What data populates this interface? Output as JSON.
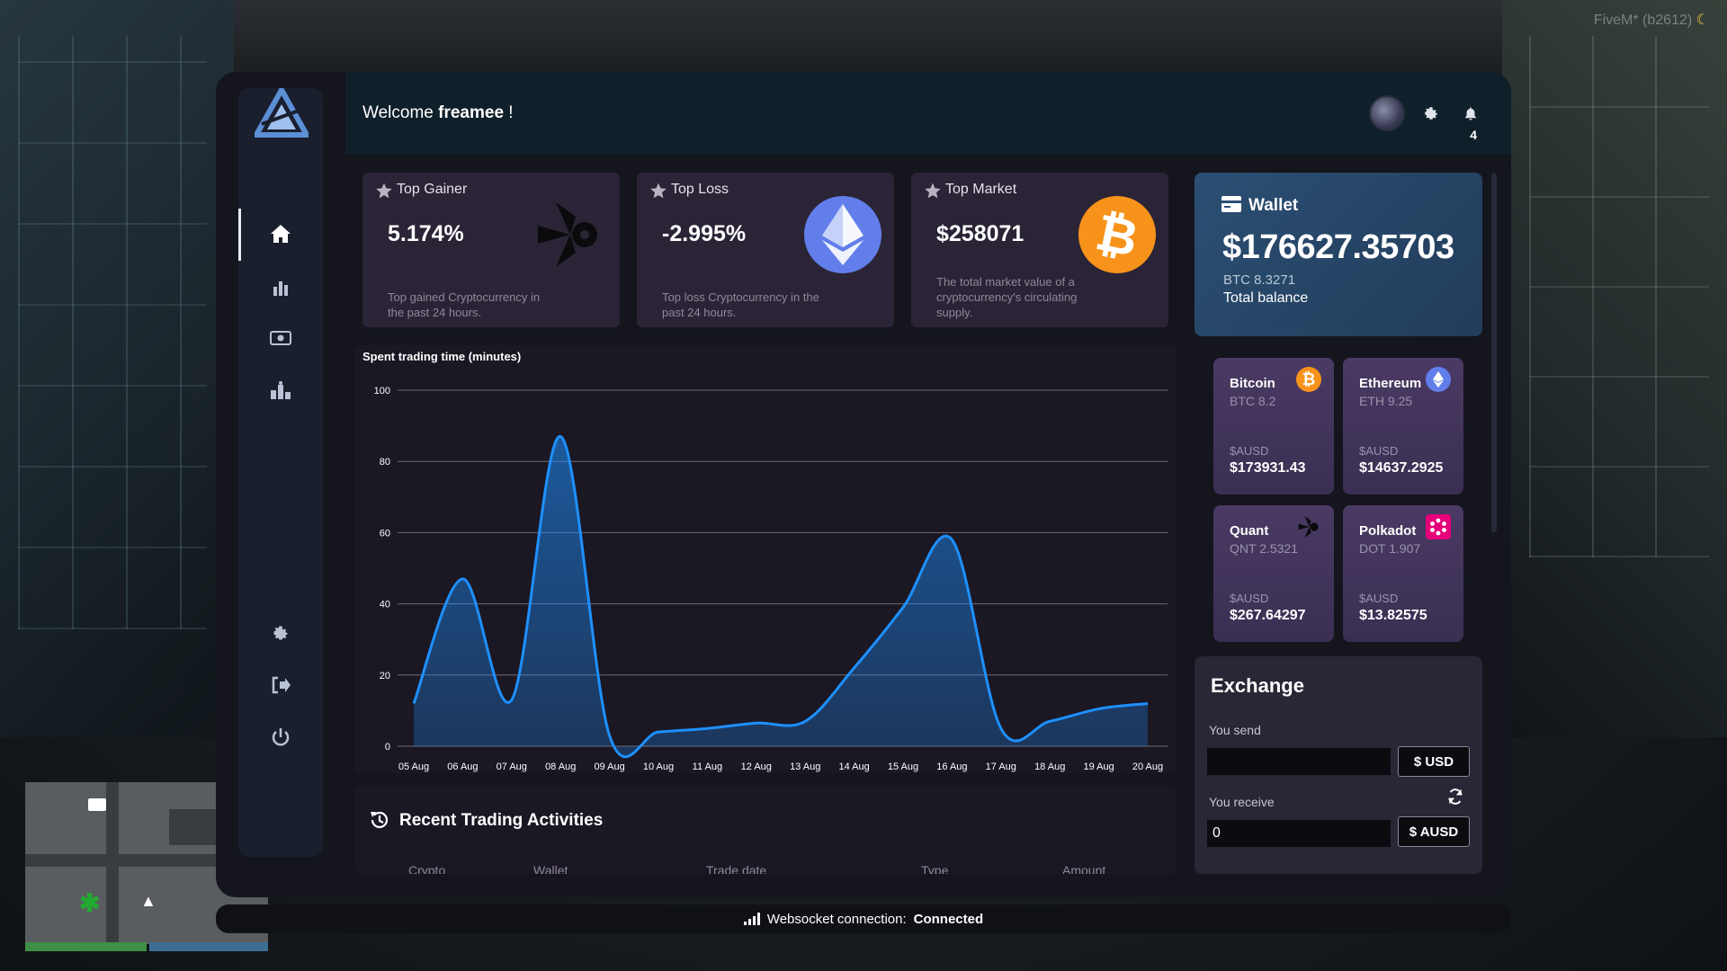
{
  "overlay": {
    "fivem_tag": "FiveM* (b2612)"
  },
  "header": {
    "welcome_prefix": "Welcome",
    "username": "freamee",
    "welcome_suffix": "!",
    "notification_count": "4"
  },
  "sidebar": {
    "items": [
      {
        "icon": "home-icon",
        "active": true
      },
      {
        "icon": "bar-chart-icon"
      },
      {
        "icon": "money-icon"
      },
      {
        "icon": "leaderboard-icon"
      },
      {
        "icon": "gear-icon"
      },
      {
        "icon": "logout-icon"
      },
      {
        "icon": "power-icon"
      }
    ]
  },
  "stats": [
    {
      "title": "Top Gainer",
      "value": "5.174%",
      "desc": "Top gained Cryptocurrency in the past 24 hours.",
      "coin": "quant-icon"
    },
    {
      "title": "Top Loss",
      "value": "-2.995%",
      "desc": "Top loss Cryptocurrency in the past 24 hours.",
      "coin": "ethereum-icon"
    },
    {
      "title": "Top Market",
      "value": "$258071",
      "desc": "The total market value of a cryptocurrency's circulating supply.",
      "coin": "bitcoin-icon"
    }
  ],
  "wallet": {
    "label": "Wallet",
    "balance": "$176627.35703",
    "btc": "BTC 8.3271",
    "total_label": "Total balance"
  },
  "coins": [
    {
      "name": "Bitcoin",
      "qty": "BTC 8.2",
      "currency": "$AUSD",
      "amount": "$173931.43",
      "color": "#f7931a"
    },
    {
      "name": "Ethereum",
      "qty": "ETH 9.25",
      "currency": "$AUSD",
      "amount": "$14637.2925",
      "color": "#627eea"
    },
    {
      "name": "Quant",
      "qty": "QNT 2.5321",
      "currency": "$AUSD",
      "amount": "$267.64297",
      "color": "#111111"
    },
    {
      "name": "Polkadot",
      "qty": "DOT 1.907",
      "currency": "$AUSD",
      "amount": "$13.82575",
      "color": "#e6007a"
    }
  ],
  "chart_data": {
    "type": "area",
    "title": "Spent trading time (minutes)",
    "xlabel": "",
    "ylabel": "",
    "categories": [
      "05 Aug",
      "06 Aug",
      "07 Aug",
      "08 Aug",
      "09 Aug",
      "10 Aug",
      "11 Aug",
      "12 Aug",
      "13 Aug",
      "14 Aug",
      "15 Aug",
      "16 Aug",
      "17 Aug",
      "18 Aug",
      "19 Aug",
      "20 Aug"
    ],
    "series": [
      {
        "values": [
          12,
          47,
          13,
          87,
          3,
          4,
          5,
          6.5,
          7,
          22,
          39,
          58,
          5,
          7,
          10.5,
          12
        ]
      }
    ],
    "yticks": [
      0,
      20,
      40,
      60,
      80,
      100
    ],
    "ylim": [
      0,
      100
    ],
    "grid": true,
    "color": "#1e90ff"
  },
  "recent": {
    "title": "Recent Trading Activities",
    "columns": [
      "Crypto",
      "Wallet",
      "Trade date",
      "Type",
      "Amount"
    ]
  },
  "exchange": {
    "title": "Exchange",
    "send_label": "You send",
    "send_value": "",
    "send_currency": "$ USD",
    "receive_label": "You receive",
    "receive_value": "0",
    "receive_currency": "$ AUSD"
  },
  "status": {
    "label": "Websocket connection:",
    "value": "Connected"
  }
}
